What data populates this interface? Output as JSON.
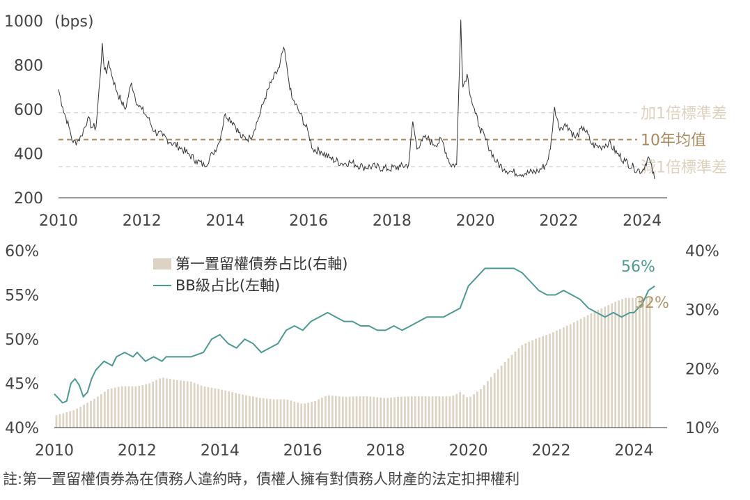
{
  "colors": {
    "spread_line": "#333333",
    "mean_line": "#a88a5e",
    "sd_line": "#d9d9d9",
    "sd_label": "#ddd2bf",
    "mean_label": "#a88a5e",
    "bar": "#ddd3c2",
    "bb_line": "#4a9a93",
    "bb_label": "#4a9a93",
    "bar_label": "#b59669"
  },
  "chart_data": [
    {
      "type": "line",
      "unit_label": "(bps)",
      "ylim": [
        200,
        1000
      ],
      "xlim": [
        2010.0,
        2024.6
      ],
      "yticks": [
        "200",
        "400",
        "600",
        "800",
        "1000"
      ],
      "xticks": [
        "2010",
        "2012",
        "2014",
        "2016",
        "2018",
        "2020",
        "2022",
        "2024"
      ],
      "reference_lines": [
        {
          "label": "加1倍標準差",
          "y": 585
        },
        {
          "label": "10年均值",
          "y": 463
        },
        {
          "label": "減1倍標準差",
          "y": 340
        }
      ],
      "series": [
        {
          "x": [
            2010.0,
            2010.1,
            2010.25,
            2010.35,
            2010.45,
            2010.55,
            2010.7,
            2010.8,
            2010.9,
            2011.0,
            2011.05,
            2011.1,
            2011.15,
            2011.2,
            2011.3,
            2011.4,
            2011.5,
            2011.6,
            2011.75,
            2011.9,
            2012.0,
            2012.15,
            2012.3,
            2012.5,
            2012.7,
            2012.9,
            2013.1,
            2013.3,
            2013.5,
            2013.7,
            2013.85,
            2014.0,
            2014.2,
            2014.4,
            2014.6,
            2014.8,
            2014.95,
            2015.1,
            2015.3,
            2015.4,
            2015.5,
            2015.6,
            2015.8,
            2016.0,
            2016.1,
            2016.3,
            2016.5,
            2016.8,
            2017.0,
            2017.3,
            2017.6,
            2017.9,
            2018.2,
            2018.4,
            2018.5,
            2018.6,
            2018.7,
            2018.85,
            2019.0,
            2019.2,
            2019.4,
            2019.55,
            2019.65,
            2019.7,
            2019.8,
            2019.9,
            2020.0,
            2020.1,
            2020.3,
            2020.5,
            2020.7,
            2020.9,
            2021.2,
            2021.5,
            2021.7,
            2021.8,
            2021.9,
            2022.0,
            2022.2,
            2022.4,
            2022.6,
            2022.8,
            2023.0,
            2023.2,
            2023.4,
            2023.6,
            2023.8,
            2024.0,
            2024.15,
            2024.3
          ],
          "values": [
            690,
            610,
            520,
            450,
            455,
            480,
            560,
            520,
            520,
            750,
            900,
            780,
            760,
            820,
            740,
            680,
            640,
            600,
            720,
            620,
            600,
            560,
            500,
            480,
            450,
            430,
            400,
            370,
            345,
            400,
            450,
            580,
            540,
            470,
            470,
            560,
            650,
            720,
            790,
            880,
            760,
            650,
            580,
            490,
            420,
            410,
            380,
            355,
            360,
            340,
            340,
            330,
            340,
            350,
            545,
            420,
            460,
            470,
            440,
            460,
            350,
            350,
            1005,
            700,
            760,
            650,
            580,
            520,
            440,
            360,
            330,
            315,
            310,
            320,
            350,
            420,
            610,
            520,
            530,
            470,
            520,
            440,
            430,
            450,
            400,
            365,
            335,
            320,
            385,
            285
          ]
        }
      ]
    },
    {
      "type": "bar",
      "ylim_left": [
        40,
        60
      ],
      "ylim_right": [
        10,
        40
      ],
      "yticks_left": [
        "40%",
        "45%",
        "50%",
        "55%",
        "60%"
      ],
      "yticks_right": [
        "10%",
        "20%",
        "30%",
        "40%"
      ],
      "xticks": [
        "2010",
        "2012",
        "2014",
        "2016",
        "2018",
        "2020",
        "2022",
        "2024"
      ],
      "series": [
        {
          "name": "第一置留權債券占比(右軸)",
          "axis": "right",
          "type": "bar",
          "x": [
            2010.0,
            2010.5,
            2011.0,
            2011.3,
            2011.6,
            2012.0,
            2012.3,
            2012.6,
            2013.0,
            2013.3,
            2013.6,
            2014.0,
            2014.3,
            2014.6,
            2015.0,
            2015.3,
            2015.6,
            2016.0,
            2016.3,
            2016.6,
            2017.0,
            2017.3,
            2017.6,
            2018.0,
            2018.3,
            2018.6,
            2019.0,
            2019.3,
            2019.6,
            2019.8,
            2020.0,
            2020.3,
            2020.6,
            2021.0,
            2021.3,
            2021.6,
            2022.0,
            2022.3,
            2022.6,
            2023.0,
            2023.3,
            2023.6,
            2023.8,
            2024.0,
            2024.2,
            2024.35
          ],
          "values": [
            12,
            13,
            15,
            16.5,
            17,
            17,
            17.5,
            18.5,
            18,
            17.8,
            17,
            16.5,
            16,
            15.5,
            15,
            14.8,
            14.8,
            14,
            14.5,
            15.5,
            15.2,
            15.3,
            15.3,
            15,
            15.2,
            15.3,
            15.3,
            15.3,
            15.3,
            16,
            15,
            16.5,
            19,
            22,
            24,
            25,
            26,
            27,
            28,
            29.5,
            30.5,
            31.5,
            32,
            32,
            32,
            32
          ]
        },
        {
          "name": "BB級占比(左軸)",
          "axis": "left",
          "type": "line",
          "x": [
            2010.0,
            2010.2,
            2010.3,
            2010.4,
            2010.5,
            2010.6,
            2010.7,
            2010.8,
            2010.9,
            2011.0,
            2011.2,
            2011.4,
            2011.5,
            2011.7,
            2011.9,
            2012.0,
            2012.2,
            2012.4,
            2012.6,
            2012.7,
            2013.0,
            2013.3,
            2013.6,
            2013.8,
            2014.0,
            2014.2,
            2014.4,
            2014.6,
            2014.8,
            2015.0,
            2015.2,
            2015.4,
            2015.6,
            2015.8,
            2016.0,
            2016.2,
            2016.4,
            2016.6,
            2016.8,
            2017.0,
            2017.2,
            2017.4,
            2017.6,
            2017.8,
            2018.0,
            2018.2,
            2018.4,
            2018.6,
            2018.8,
            2019.0,
            2019.2,
            2019.4,
            2019.6,
            2019.8,
            2020.0,
            2020.2,
            2020.4,
            2020.7,
            2020.9,
            2021.1,
            2021.3,
            2021.5,
            2021.7,
            2021.9,
            2022.1,
            2022.3,
            2022.5,
            2022.7,
            2022.9,
            2023.1,
            2023.3,
            2023.5,
            2023.7,
            2023.9,
            2024.0,
            2024.2,
            2024.35,
            2024.5
          ],
          "values": [
            43.8,
            42.8,
            43.0,
            45.0,
            45.5,
            44.8,
            43.5,
            44.0,
            45.5,
            46.5,
            47.5,
            47.0,
            48.0,
            48.5,
            48.0,
            48.5,
            47.5,
            48.0,
            47.5,
            48.0,
            48.0,
            48.0,
            48.5,
            50.0,
            50.5,
            49.5,
            49.0,
            50.0,
            49.5,
            48.5,
            49.0,
            49.5,
            51.0,
            51.5,
            51.0,
            52.0,
            52.5,
            53.0,
            52.5,
            52.0,
            52.0,
            51.5,
            51.5,
            51.0,
            51.0,
            51.5,
            51.0,
            51.5,
            52.0,
            52.5,
            52.5,
            52.5,
            53.0,
            53.5,
            56.0,
            57.0,
            58.0,
            58.0,
            58.0,
            58.0,
            57.5,
            56.5,
            55.5,
            55.0,
            55.0,
            55.5,
            55.0,
            54.5,
            53.5,
            53.0,
            52.5,
            53.0,
            52.5,
            53.0,
            53.0,
            54.0,
            55.5,
            56.0
          ]
        }
      ],
      "annotations": [
        {
          "label": "56%",
          "series": "BB級占比(左軸)"
        },
        {
          "label": "32%",
          "series": "第一置留權債券占比(右軸)"
        }
      ]
    }
  ],
  "note": "註:第一置留權債券為在債務人違約時，債權人擁有對債務人財產的法定扣押權利"
}
